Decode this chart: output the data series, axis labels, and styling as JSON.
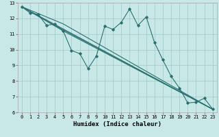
{
  "xlabel": "Humidex (Indice chaleur)",
  "bg_color": "#c8e8e8",
  "grid_color": "#a8cccc",
  "line_color": "#2a7070",
  "xlim": [
    -0.5,
    23.5
  ],
  "ylim": [
    6,
    13
  ],
  "xticks": [
    0,
    1,
    2,
    3,
    4,
    5,
    6,
    7,
    8,
    9,
    10,
    11,
    12,
    13,
    14,
    15,
    16,
    17,
    18,
    19,
    20,
    21,
    22,
    23
  ],
  "yticks": [
    6,
    7,
    8,
    9,
    10,
    11,
    12,
    13
  ],
  "main_x": [
    0,
    1,
    2,
    3,
    4,
    5,
    6,
    7,
    8,
    9,
    10,
    11,
    12,
    13,
    14,
    15,
    16,
    17,
    18,
    19,
    20,
    21,
    22,
    23
  ],
  "main_y": [
    12.75,
    12.35,
    12.25,
    11.55,
    11.65,
    11.2,
    9.95,
    9.75,
    8.8,
    9.6,
    11.5,
    11.3,
    11.75,
    12.6,
    11.55,
    12.1,
    10.45,
    9.35,
    8.3,
    7.55,
    6.6,
    6.65,
    6.9,
    6.2
  ],
  "trend_lines": [
    {
      "x": [
        0,
        23
      ],
      "y": [
        12.75,
        6.2
      ]
    },
    {
      "x": [
        0,
        4,
        23
      ],
      "y": [
        12.75,
        11.55,
        6.2
      ]
    },
    {
      "x": [
        0,
        5,
        23
      ],
      "y": [
        12.75,
        11.65,
        6.2
      ]
    },
    {
      "x": [
        0,
        5,
        23
      ],
      "y": [
        12.75,
        11.2,
        6.2
      ]
    }
  ]
}
